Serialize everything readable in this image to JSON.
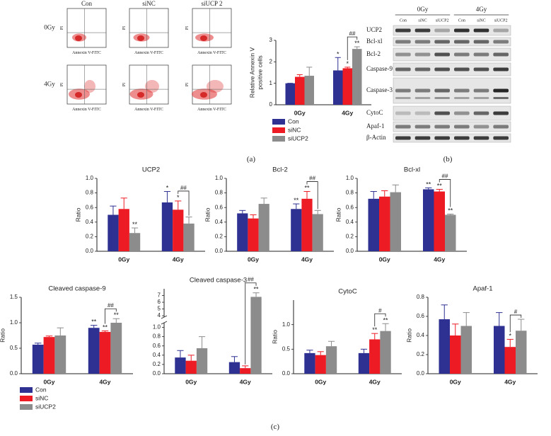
{
  "panels": [
    "(a)",
    "(b)",
    "(c)"
  ],
  "flow": {
    "columns": [
      "Con",
      "siNC",
      "siUCP 2"
    ],
    "rows": [
      "0Gy",
      "4Gy"
    ],
    "x_label": "Annexin V-FITC",
    "y_label": "PI"
  },
  "blot": {
    "groups": [
      "0Gy",
      "4Gy"
    ],
    "lanes": [
      "Con",
      "siNC",
      "siUCP2",
      "Con",
      "siNC",
      "siUCP2"
    ],
    "proteins": [
      "UCP2",
      "Bcl-xl",
      "Bcl-2",
      "Caspase-9",
      "Caspase-3",
      "CytoC",
      "Apaf-1",
      "β-Actin"
    ]
  },
  "chart_data": [
    {
      "type": "bar",
      "y_label": [
        "Relative Annexin V",
        "positive cells"
      ],
      "categories": [
        "0Gy",
        "4Gy"
      ],
      "series": [
        {
          "name": "Con",
          "color": "#2e3192",
          "values": [
            1.0,
            1.6
          ],
          "errors": [
            0,
            0.6
          ],
          "stars": [
            null,
            "*"
          ]
        },
        {
          "name": "siNC",
          "color": "#ed1c24",
          "values": [
            1.3,
            1.7
          ],
          "errors": [
            0.1,
            0.05
          ],
          "stars": [
            null,
            "*"
          ]
        },
        {
          "name": "siUCP2",
          "color": "#8c8c8c",
          "values": [
            1.35,
            2.6
          ],
          "errors": [
            0.4,
            0.1
          ],
          "stars": [
            null,
            "**"
          ]
        }
      ],
      "brackets": [
        {
          "label": "##",
          "category": "4Gy",
          "between": [
            "siNC",
            "siUCP2"
          ]
        }
      ],
      "ylim": [
        0,
        3
      ],
      "yticks": [
        0,
        1,
        2,
        3
      ],
      "legend": "below-left"
    },
    {
      "type": "bar",
      "title": "UCP2",
      "y_label": [
        "Ratio"
      ],
      "categories": [
        "0Gy",
        "4Gy"
      ],
      "series": [
        {
          "name": "Con",
          "color": "#2e3192",
          "values": [
            0.5,
            0.67
          ],
          "errors": [
            0.12,
            0.15
          ],
          "stars": [
            null,
            "*"
          ]
        },
        {
          "name": "siNC",
          "color": "#ed1c24",
          "values": [
            0.58,
            0.57
          ],
          "errors": [
            0.15,
            0.12
          ],
          "stars": [
            null,
            "*"
          ]
        },
        {
          "name": "siUCP2",
          "color": "#8c8c8c",
          "values": [
            0.25,
            0.38
          ],
          "errors": [
            0.07,
            0.09
          ],
          "stars": [
            "**",
            null
          ]
        }
      ],
      "brackets": [
        {
          "label": "##",
          "category": "4Gy",
          "between": [
            "siNC",
            "siUCP2"
          ]
        }
      ],
      "ylim": [
        0,
        1
      ],
      "yticks": [
        {
          "value": 0,
          "label": "0.0"
        },
        0.2,
        0.4,
        0.6,
        0.8,
        {
          "value": 1,
          "label": "1.0"
        }
      ]
    },
    {
      "type": "bar",
      "title": "Bcl-2",
      "y_label": [
        "Ratio"
      ],
      "categories": [
        "0Gy",
        "4Gy"
      ],
      "series": [
        {
          "name": "Con",
          "color": "#2e3192",
          "values": [
            0.52,
            0.58
          ],
          "errors": [
            0.04,
            0.07
          ],
          "stars": [
            null,
            "**"
          ]
        },
        {
          "name": "siNC",
          "color": "#ed1c24",
          "values": [
            0.45,
            0.72
          ],
          "errors": [
            0.05,
            0.1
          ],
          "stars": [
            null,
            "**"
          ]
        },
        {
          "name": "siUCP2",
          "color": "#8c8c8c",
          "values": [
            0.65,
            0.51
          ],
          "errors": [
            0.08,
            0.05
          ],
          "stars": [
            null,
            null
          ]
        }
      ],
      "brackets": [
        {
          "label": "##",
          "category": "4Gy",
          "between": [
            "siNC",
            "siUCP2"
          ]
        }
      ],
      "ylim": [
        0,
        1
      ],
      "yticks": [
        {
          "value": 0,
          "label": "0.0"
        },
        0.2,
        0.4,
        0.6,
        0.8,
        {
          "value": 1,
          "label": "1.0"
        }
      ]
    },
    {
      "type": "bar",
      "title": "Bcl-xl",
      "y_label": [
        "Ratio"
      ],
      "categories": [
        "0Gy",
        "4Gy"
      ],
      "series": [
        {
          "name": "Con",
          "color": "#2e3192",
          "values": [
            0.72,
            0.85
          ],
          "errors": [
            0.1,
            0.02
          ],
          "stars": [
            null,
            "**"
          ]
        },
        {
          "name": "siNC",
          "color": "#ed1c24",
          "values": [
            0.75,
            0.82
          ],
          "errors": [
            0.08,
            0.03
          ],
          "stars": [
            null,
            "**"
          ]
        },
        {
          "name": "siUCP2",
          "color": "#8c8c8c",
          "values": [
            0.81,
            0.5
          ],
          "errors": [
            0.1,
            0.01
          ],
          "stars": [
            null,
            "**"
          ]
        }
      ],
      "brackets": [
        {
          "label": "##",
          "category": "4Gy",
          "between": [
            "siNC",
            "siUCP2"
          ]
        }
      ],
      "ylim": [
        0,
        1
      ],
      "yticks": [
        {
          "value": 0,
          "label": "0.0"
        },
        0.2,
        0.4,
        0.6,
        0.8,
        {
          "value": 1,
          "label": "1.0"
        }
      ]
    },
    {
      "type": "bar",
      "title": "Cleaved caspase-9",
      "y_label": [
        "Ratio"
      ],
      "categories": [
        "0Gy",
        "4Gy"
      ],
      "series": [
        {
          "name": "Con",
          "color": "#2e3192",
          "values": [
            0.57,
            0.9
          ],
          "errors": [
            0.03,
            0.05
          ],
          "stars": [
            null,
            "**"
          ]
        },
        {
          "name": "siNC",
          "color": "#ed1c24",
          "values": [
            0.72,
            0.82
          ],
          "errors": [
            0.02,
            0.02
          ],
          "stars": [
            null,
            "**"
          ]
        },
        {
          "name": "siUCP2",
          "color": "#8c8c8c",
          "values": [
            0.75,
            1.0
          ],
          "errors": [
            0.15,
            0.08
          ],
          "stars": [
            null,
            "**"
          ]
        }
      ],
      "brackets": [
        {
          "label": "##",
          "category": "4Gy",
          "between": [
            "siNC",
            "siUCP2"
          ]
        }
      ],
      "ylim": [
        0,
        1.5
      ],
      "yticks": [
        {
          "value": 0,
          "label": "0.0"
        },
        0.5,
        {
          "value": 1,
          "label": "1.0"
        },
        1.5
      ],
      "legend": "below-left"
    },
    {
      "type": "bar",
      "title": "Cleaved caspase-3",
      "categories": [
        "0Gy",
        "4Gy"
      ],
      "series": [
        {
          "name": "Con",
          "color": "#2e3192",
          "values": [
            0.35,
            0.25
          ],
          "errors": [
            0.15,
            0.12
          ],
          "stars": [
            null,
            null
          ]
        },
        {
          "name": "siNC",
          "color": "#ed1c24",
          "values": [
            0.28,
            0.12
          ],
          "errors": [
            0.12,
            0.05
          ],
          "stars": [
            null,
            null
          ]
        },
        {
          "name": "siUCP2",
          "color": "#8c8c8c",
          "values": [
            0.55,
            6.8
          ],
          "errors": [
            0.25,
            0.6
          ],
          "stars": [
            null,
            "**"
          ]
        }
      ],
      "brackets": [
        {
          "label": "##",
          "category": "4Gy",
          "between": [
            "siNC",
            "siUCP2"
          ]
        }
      ],
      "ylim": [
        0,
        8
      ],
      "ybreak": [
        1.1,
        3.8
      ],
      "yticks": [
        {
          "value": 0,
          "label": "0.0"
        },
        0.2,
        0.4,
        0.6,
        0.8,
        {
          "value": 1,
          "label": "1.0"
        },
        4,
        5,
        6,
        7
      ]
    },
    {
      "type": "bar",
      "title": "CytoC",
      "y_label": [
        "Ratio"
      ],
      "categories": [
        "0Gy",
        "4Gy"
      ],
      "series": [
        {
          "name": "Con",
          "color": "#2e3192",
          "values": [
            0.42,
            0.42
          ],
          "errors": [
            0.06,
            0.08
          ],
          "stars": [
            null,
            null
          ]
        },
        {
          "name": "siNC",
          "color": "#ed1c24",
          "values": [
            0.38,
            0.7
          ],
          "errors": [
            0.07,
            0.12
          ],
          "stars": [
            null,
            "**"
          ]
        },
        {
          "name": "siUCP2",
          "color": "#8c8c8c",
          "values": [
            0.56,
            0.87
          ],
          "errors": [
            0.1,
            0.15
          ],
          "stars": [
            null,
            "**"
          ]
        }
      ],
      "brackets": [
        {
          "label": "#",
          "category": "4Gy",
          "between": [
            "siNC",
            "siUCP2"
          ]
        }
      ],
      "ylim": [
        0,
        1.5
      ],
      "yticks": [
        {
          "value": 0,
          "label": "0.0"
        },
        0.5,
        {
          "value": 1,
          "label": "1.0"
        }
      ]
    },
    {
      "type": "bar",
      "title": "Apaf-1",
      "y_label": [
        "Ratio"
      ],
      "categories": [
        "0Gy",
        "4Gy"
      ],
      "series": [
        {
          "name": "Con",
          "color": "#2e3192",
          "values": [
            0.57,
            0.5
          ],
          "errors": [
            0.15,
            0.14
          ],
          "stars": [
            null,
            null
          ]
        },
        {
          "name": "siNC",
          "color": "#ed1c24",
          "values": [
            0.4,
            0.28
          ],
          "errors": [
            0.12,
            0.08
          ],
          "stars": [
            null,
            "*"
          ]
        },
        {
          "name": "siUCP2",
          "color": "#8c8c8c",
          "values": [
            0.5,
            0.45
          ],
          "errors": [
            0.14,
            0.12
          ],
          "stars": [
            null,
            null
          ]
        }
      ],
      "brackets": [
        {
          "label": "#",
          "category": "4Gy",
          "between": [
            "siNC",
            "siUCP2"
          ]
        }
      ],
      "ylim": [
        0,
        0.8
      ],
      "yticks": [
        {
          "value": 0,
          "label": "0.0"
        },
        0.2,
        0.4,
        0.6,
        0.8
      ]
    }
  ]
}
